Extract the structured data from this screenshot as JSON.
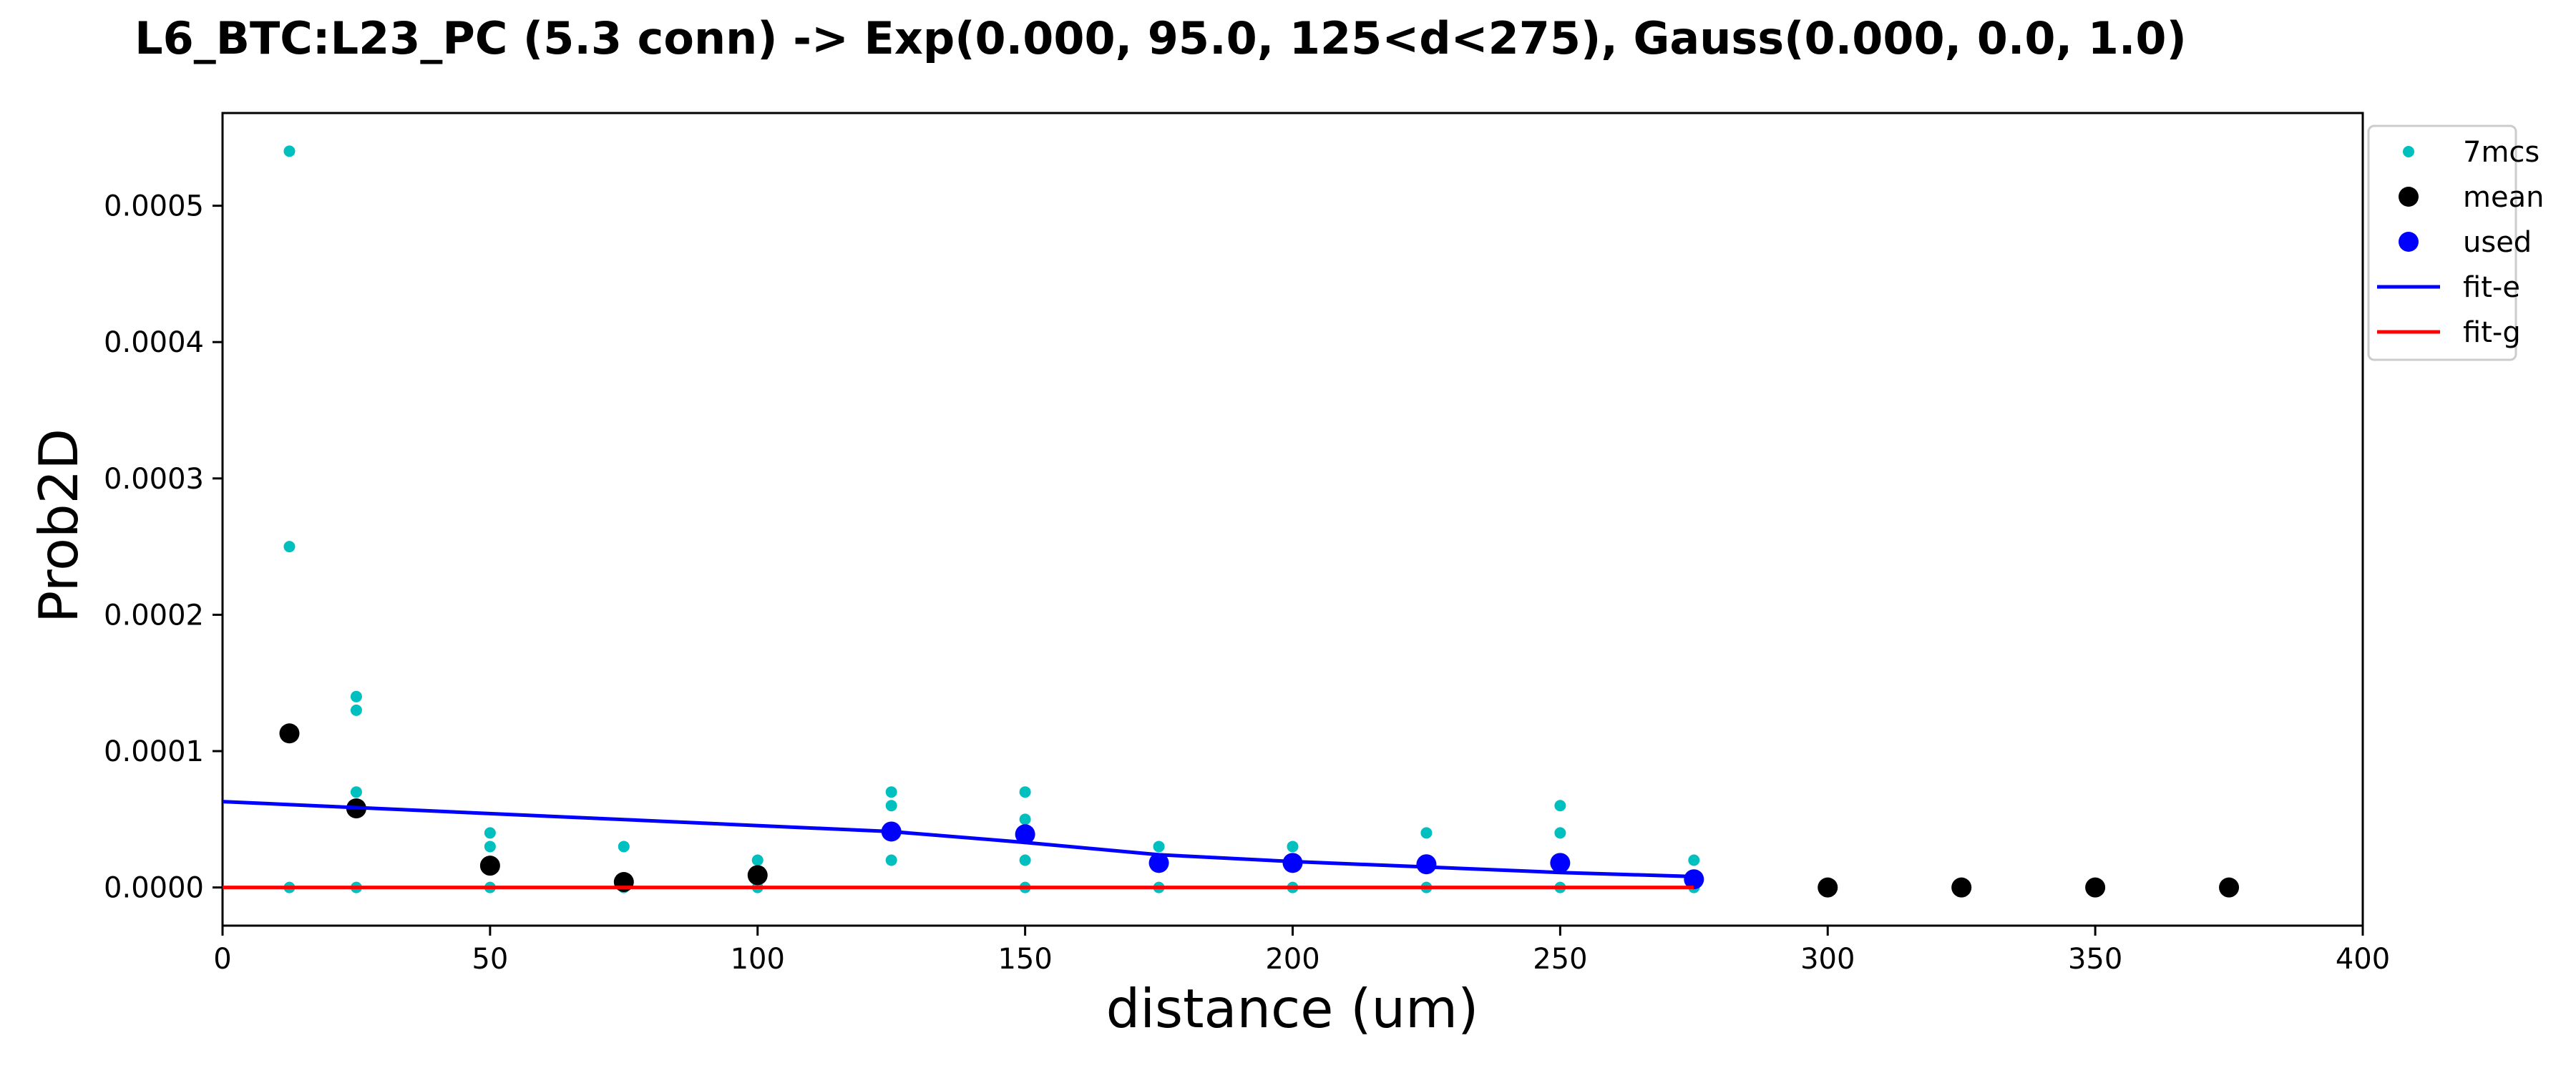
{
  "chart_data": {
    "type": "scatter",
    "title": "L6_BTC:L23_PC (5.3 conn) -> Exp(0.000, 95.0, 125<d<275), Gauss(0.000, 0.0, 1.0)",
    "xlabel": "distance (um)",
    "ylabel": "Prob2D",
    "xlim": [
      0,
      400
    ],
    "ylim": [
      -2.8e-05,
      0.000568
    ],
    "x_ticks": [
      0,
      50,
      100,
      150,
      200,
      250,
      300,
      350,
      400
    ],
    "x_tick_labels": [
      "0",
      "50",
      "100",
      "150",
      "200",
      "250",
      "300",
      "350",
      "400"
    ],
    "y_ticks": [
      0.0,
      0.0001,
      0.0002,
      0.0003,
      0.0004,
      0.0005
    ],
    "y_tick_labels": [
      "0.0000",
      "0.0001",
      "0.0002",
      "0.0003",
      "0.0004",
      "0.0005"
    ],
    "grid": false,
    "legend_position": "outside-top-right",
    "series": [
      {
        "name": "7mcs",
        "kind": "points",
        "color": "#00bfbf",
        "points": [
          [
            12.5,
            0.00054
          ],
          [
            12.5,
            0.00025
          ],
          [
            12.5,
            0.0
          ],
          [
            25,
            0.00014
          ],
          [
            25,
            0.00013
          ],
          [
            25,
            7e-05
          ],
          [
            25,
            0.0
          ],
          [
            50,
            4e-05
          ],
          [
            50,
            3e-05
          ],
          [
            50,
            0.0
          ],
          [
            75,
            3e-05
          ],
          [
            75,
            0.0
          ],
          [
            100,
            2e-05
          ],
          [
            100,
            0.0
          ],
          [
            125,
            7e-05
          ],
          [
            125,
            6e-05
          ],
          [
            125,
            2e-05
          ],
          [
            150,
            7e-05
          ],
          [
            150,
            5e-05
          ],
          [
            150,
            2e-05
          ],
          [
            150,
            0.0
          ],
          [
            175,
            3e-05
          ],
          [
            175,
            2e-05
          ],
          [
            175,
            0.0
          ],
          [
            200,
            3e-05
          ],
          [
            200,
            2e-05
          ],
          [
            200,
            0.0
          ],
          [
            225,
            4e-05
          ],
          [
            225,
            2e-05
          ],
          [
            225,
            0.0
          ],
          [
            250,
            6e-05
          ],
          [
            250,
            4e-05
          ],
          [
            250,
            2e-05
          ],
          [
            250,
            0.0
          ],
          [
            275,
            2e-05
          ],
          [
            275,
            0.0
          ]
        ]
      },
      {
        "name": "mean",
        "kind": "points-large",
        "color": "#000000",
        "points": [
          [
            12.5,
            0.000113
          ],
          [
            25,
            5.8e-05
          ],
          [
            50,
            1.6e-05
          ],
          [
            75,
            4e-06
          ],
          [
            100,
            9e-06
          ],
          [
            300,
            0.0
          ],
          [
            325,
            0.0
          ],
          [
            350,
            0.0
          ],
          [
            375,
            0.0
          ]
        ]
      },
      {
        "name": "used",
        "kind": "points-large",
        "color": "#0000ff",
        "points": [
          [
            125,
            4.1e-05
          ],
          [
            150,
            3.9e-05
          ],
          [
            175,
            1.8e-05
          ],
          [
            200,
            1.8e-05
          ],
          [
            225,
            1.7e-05
          ],
          [
            250,
            1.8e-05
          ],
          [
            275,
            6e-06
          ]
        ]
      },
      {
        "name": "fit-e",
        "kind": "line",
        "color": "#0000ff",
        "points": [
          [
            0,
            6.3e-05
          ],
          [
            125,
            4.1e-05
          ],
          [
            150,
            3.3e-05
          ],
          [
            175,
            2.4e-05
          ],
          [
            200,
            1.9e-05
          ],
          [
            225,
            1.5e-05
          ],
          [
            250,
            1.1e-05
          ],
          [
            275,
            8e-06
          ]
        ]
      },
      {
        "name": "fit-g",
        "kind": "line",
        "color": "#ff0000",
        "points": [
          [
            0,
            0.0
          ],
          [
            275,
            0.0
          ]
        ]
      }
    ]
  }
}
